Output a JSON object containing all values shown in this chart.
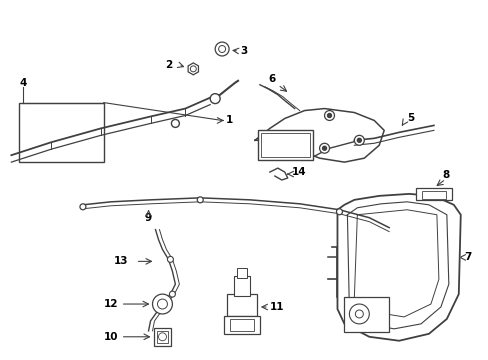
{
  "bg_color": "#ffffff",
  "line_color": "#404040",
  "text_color": "#000000",
  "figsize": [
    4.89,
    3.6
  ],
  "dpi": 100,
  "arrow_style": "->",
  "font_size": 7.5
}
